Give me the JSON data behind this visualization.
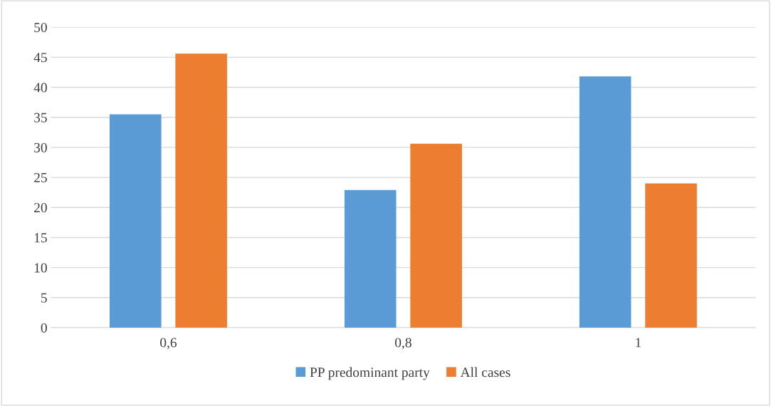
{
  "chart_data": {
    "type": "bar",
    "categories": [
      "0,6",
      "0,8",
      "1"
    ],
    "series": [
      {
        "name": "PP predominant party",
        "color": "#5b9bd5",
        "values": [
          35.5,
          22.9,
          41.8
        ]
      },
      {
        "name": "All cases",
        "color": "#ed7d31",
        "values": [
          45.6,
          30.6,
          24.0
        ]
      }
    ],
    "ylim": [
      0,
      50
    ],
    "yticks": [
      0,
      5,
      10,
      15,
      20,
      25,
      30,
      35,
      40,
      45,
      50
    ],
    "grid": "y",
    "legend": "bottom"
  }
}
